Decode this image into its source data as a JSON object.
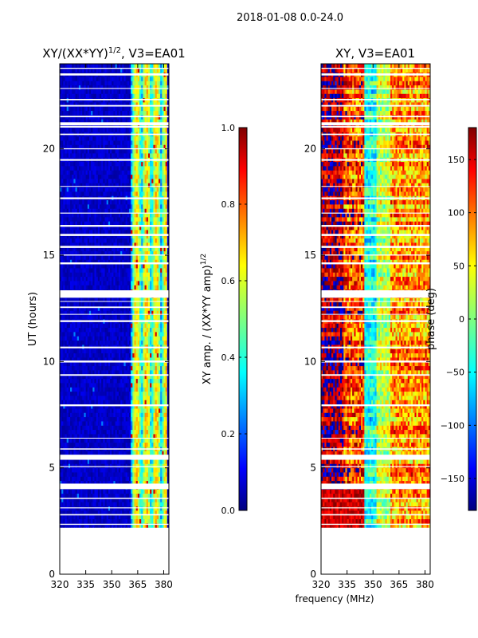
{
  "suptitle": "2018-01-08 0.0-24.0",
  "shared_xlabel": "frequency (MHz)",
  "colors": {
    "jet": [
      "#00007f",
      "#0000ff",
      "#007fff",
      "#00ffff",
      "#7fff7f",
      "#ffff00",
      "#ff7f00",
      "#ff0000",
      "#7f0000"
    ],
    "background": "#ffffff",
    "gap": "#ffffff"
  },
  "chart_data": [
    {
      "id": "amplitude",
      "type": "heatmap",
      "title": "XY/(XX*YY)",
      "title_superscript": "1/2",
      "title_suffix": ", V3=EA01",
      "xlabel": "",
      "ylabel": "UT (hours)",
      "xlim": [
        320,
        383
      ],
      "ylim": [
        0,
        24
      ],
      "xticks": [
        "320",
        "335",
        "350",
        "365",
        "380"
      ],
      "yticks": [
        "0",
        "5",
        "10",
        "15",
        "20"
      ],
      "data_range_hours": [
        2.2,
        24.0
      ],
      "colorbar": {
        "label": "XY amp. / (XX*YY amp)",
        "label_superscript": "1/2",
        "range": [
          0.0,
          1.0
        ],
        "ticks": [
          "0.0",
          "0.2",
          "0.4",
          "0.6",
          "0.8",
          "1.0"
        ]
      }
    },
    {
      "id": "phase",
      "type": "heatmap",
      "title": "XY, V3=EA01",
      "title_superscript": "",
      "title_suffix": "",
      "xlabel": "frequency (MHz)",
      "ylabel": "",
      "xlim": [
        320,
        383
      ],
      "ylim": [
        0,
        24
      ],
      "xticks": [
        "320",
        "335",
        "350",
        "365",
        "380"
      ],
      "yticks": [
        "0",
        "5",
        "10",
        "15",
        "20"
      ],
      "data_range_hours": [
        2.2,
        24.0
      ],
      "colorbar": {
        "label": "phase (deg)",
        "label_superscript": "",
        "range": [
          -180,
          180
        ],
        "ticks": [
          "−150",
          "−100",
          "−50",
          "0",
          "50",
          "100",
          "150"
        ]
      }
    }
  ]
}
